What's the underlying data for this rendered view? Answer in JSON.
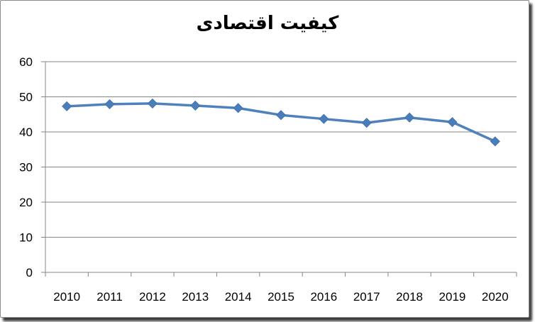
{
  "chart_data": {
    "type": "line",
    "title": "كيفيت اقتصادی",
    "categories": [
      "2010",
      "2011",
      "2012",
      "2013",
      "2014",
      "2015",
      "2016",
      "2017",
      "2018",
      "2019",
      "2020"
    ],
    "series": [
      {
        "values": [
          47.3,
          47.9,
          48.1,
          47.5,
          46.8,
          44.8,
          43.7,
          42.6,
          44.1,
          42.8,
          37.3
        ]
      }
    ],
    "ylim": [
      0,
      60
    ],
    "yticks": [
      0,
      10,
      20,
      30,
      40,
      50,
      60
    ],
    "grid": true,
    "legend": "none",
    "colors": {
      "line": "#4f81bd",
      "marker": "#4a7ebb",
      "grid": "#868686",
      "axis": "#868686"
    },
    "marker": "diamond-icon"
  }
}
